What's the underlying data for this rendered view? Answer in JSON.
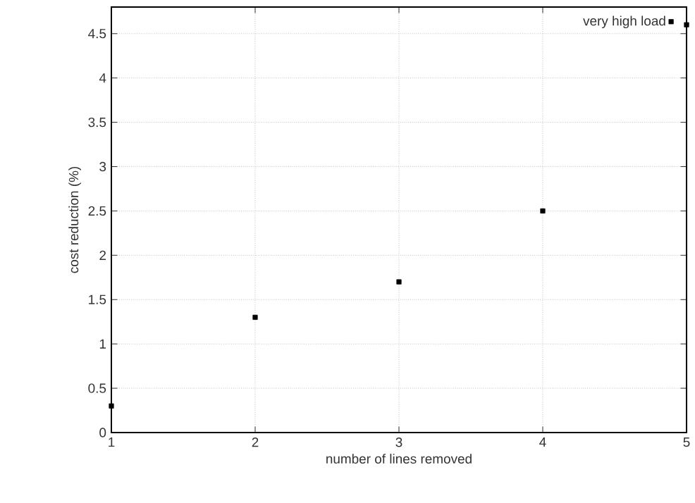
{
  "chart_data": {
    "type": "scatter",
    "xlabel": "number of lines removed",
    "ylabel": "cost reduction (%)",
    "x": [
      1,
      2,
      3,
      4,
      5
    ],
    "series": [
      {
        "name": "very high load",
        "color": "#000000",
        "values": [
          0.3,
          1.3,
          1.7,
          2.5,
          4.6
        ]
      }
    ],
    "xlim": [
      1,
      5
    ],
    "ylim": [
      0,
      4.8
    ],
    "xticks": [
      1,
      2,
      3,
      4,
      5
    ],
    "yticks": [
      0,
      0.5,
      1,
      1.5,
      2,
      2.5,
      3,
      3.5,
      4,
      4.5
    ],
    "grid": true,
    "legend": "top right",
    "marker": "square"
  }
}
